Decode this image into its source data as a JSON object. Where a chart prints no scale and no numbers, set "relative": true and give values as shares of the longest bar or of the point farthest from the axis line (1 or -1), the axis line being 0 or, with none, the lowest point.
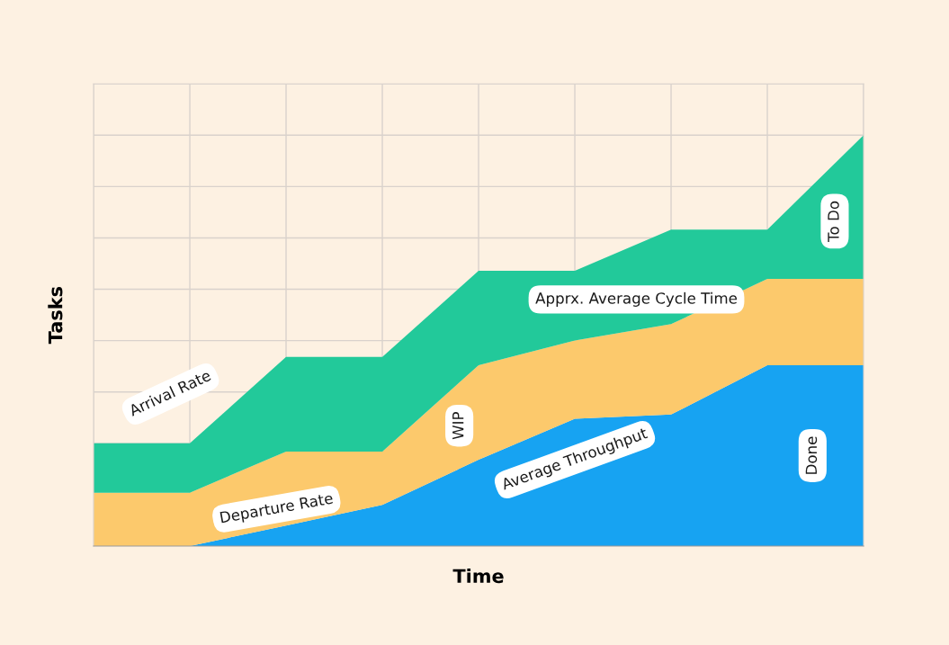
{
  "chart_data": {
    "type": "area",
    "stacked": true,
    "relative": true,
    "xlabel": "Time",
    "ylabel": "Tasks",
    "categories": [
      null,
      null,
      null,
      null,
      null,
      null,
      null,
      null,
      null
    ],
    "series": [
      {
        "name": "Done",
        "color": "#17a3f2",
        "values": [
          0,
          0,
          0.05,
          0.1,
          0.21,
          0.31,
          0.32,
          0.44,
          0.44
        ]
      },
      {
        "name": "WIP",
        "color": "#fcc96c",
        "values": [
          0.13,
          0.13,
          0.18,
          0.13,
          0.23,
          0.19,
          0.22,
          0.21,
          0.21
        ]
      },
      {
        "name": "To Do",
        "color": "#22c99a",
        "values": [
          0.12,
          0.12,
          0.23,
          0.23,
          0.23,
          0.17,
          0.23,
          0.12,
          0.35
        ]
      }
    ],
    "annotations": [
      "Arrival Rate",
      "Departure Rate",
      "Apprx. Average Cycle Time",
      "Average Throughput"
    ],
    "grid": true,
    "tick_labels": false,
    "legend": false
  }
}
